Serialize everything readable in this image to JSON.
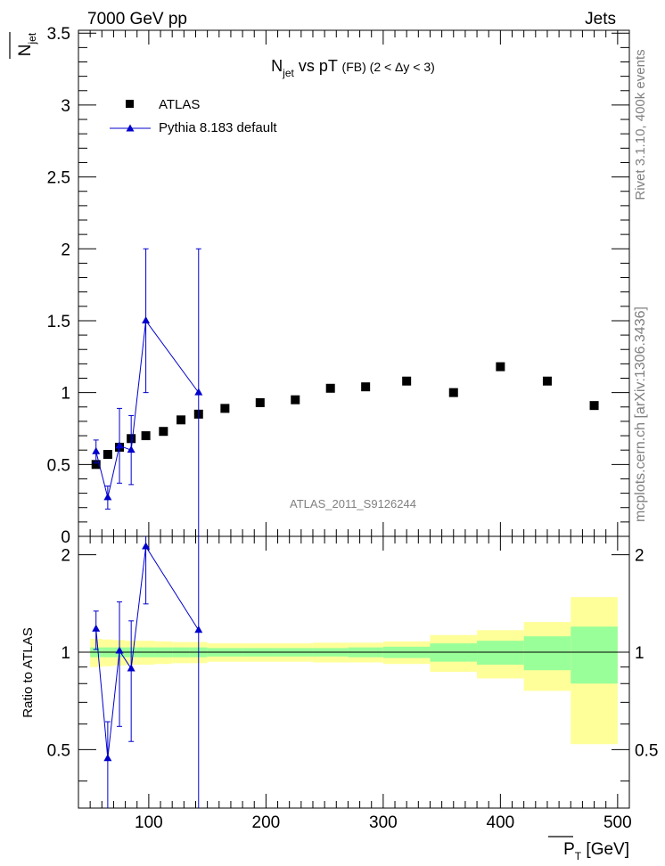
{
  "header": {
    "left": "7000 GeV pp",
    "right": "Jets"
  },
  "side": {
    "rivet": "Rivet 3.1.10,  400k events",
    "mcplots": "mcplots.cern.ch [arXiv:1306.3436]"
  },
  "chart_data": [
    {
      "type": "scatter",
      "title_main": "N",
      "title_sub": "jet",
      "title_rest": " vs pT ",
      "title_tag": "(FB)",
      "title_range": " (2 < Δy < 3)",
      "ylabel_main": "N",
      "ylabel_sub": "jet",
      "watermark": "ATLAS_2011_S9126244",
      "xlim": [
        40,
        510
      ],
      "ylim": [
        0,
        3.52
      ],
      "yticks": [
        0,
        0.5,
        1,
        1.5,
        2,
        2.5,
        3,
        3.5
      ],
      "ytick_labels": [
        "0",
        "0.5",
        "1",
        "1.5",
        "2",
        "2.5",
        "3",
        "3.5"
      ],
      "legend": [
        {
          "label": "ATLAS",
          "marker": "square",
          "color": "#000000"
        },
        {
          "label": "Pythia 8.183 default",
          "marker": "triangle",
          "color": "#0000cc"
        }
      ],
      "series": [
        {
          "name": "ATLAS",
          "x": [
            55,
            65,
            75,
            85,
            97.5,
            112.5,
            127.5,
            142.5,
            165,
            195,
            225,
            255,
            285,
            320,
            360,
            400,
            440,
            480
          ],
          "y": [
            0.5,
            0.57,
            0.62,
            0.68,
            0.7,
            0.73,
            0.81,
            0.85,
            0.89,
            0.93,
            0.95,
            1.03,
            1.04,
            1.08,
            1.0,
            1.18,
            1.08,
            0.91
          ]
        },
        {
          "name": "Pythia 8.183 default",
          "x": [
            55,
            65,
            75,
            85,
            97.5,
            142.5
          ],
          "y": [
            0.59,
            0.27,
            0.63,
            0.6,
            1.5,
            1.0
          ],
          "yerr": [
            0.08,
            0.08,
            0.26,
            0.24,
            0.5,
            1.0
          ]
        }
      ]
    },
    {
      "type": "scatter",
      "ylabel": "Ratio to ATLAS",
      "xlabel_main": "P",
      "xlabel_sub": "T",
      "xlabel_unit": " [GeV]",
      "xlim": [
        40,
        510
      ],
      "ylim": [
        0.33,
        2.28
      ],
      "xticks": [
        100,
        200,
        300,
        400,
        500
      ],
      "xtick_labels": [
        "100",
        "200",
        "300",
        "400",
        "500"
      ],
      "yticks": [
        0.5,
        1,
        2
      ],
      "ytick_labels": [
        "0.5",
        "1",
        "2"
      ],
      "bands": {
        "edges": [
          50,
          60,
          70,
          80,
          90,
          105,
          120,
          135,
          150,
          180,
          210,
          240,
          270,
          300,
          340,
          380,
          420,
          460,
          500
        ],
        "stat_lo": [
          0.965,
          0.965,
          0.965,
          0.965,
          0.965,
          0.965,
          0.965,
          0.965,
          0.97,
          0.97,
          0.97,
          0.97,
          0.965,
          0.96,
          0.935,
          0.915,
          0.88,
          0.8
        ],
        "stat_hi": [
          1.035,
          1.035,
          1.035,
          1.035,
          1.035,
          1.035,
          1.035,
          1.035,
          1.03,
          1.03,
          1.03,
          1.03,
          1.035,
          1.04,
          1.065,
          1.085,
          1.12,
          1.2
        ],
        "syst_lo": [
          0.9,
          0.905,
          0.91,
          0.915,
          0.915,
          0.92,
          0.925,
          0.925,
          0.935,
          0.935,
          0.935,
          0.93,
          0.93,
          0.92,
          0.87,
          0.83,
          0.76,
          0.52
        ],
        "syst_hi": [
          1.1,
          1.095,
          1.09,
          1.085,
          1.085,
          1.08,
          1.075,
          1.075,
          1.065,
          1.065,
          1.065,
          1.07,
          1.07,
          1.08,
          1.13,
          1.17,
          1.24,
          1.48
        ],
        "stat_color": "#99ff99",
        "syst_color": "#ffff99"
      },
      "series": [
        {
          "name": "Pythia 8.183 default",
          "x": [
            55,
            65,
            75,
            85,
            97.5,
            142.5
          ],
          "y": [
            1.18,
            0.47,
            1.01,
            0.89,
            2.12,
            1.17
          ],
          "yerr": [
            0.16,
            0.14,
            0.42,
            0.36,
            0.71,
            1.17
          ]
        }
      ]
    }
  ]
}
